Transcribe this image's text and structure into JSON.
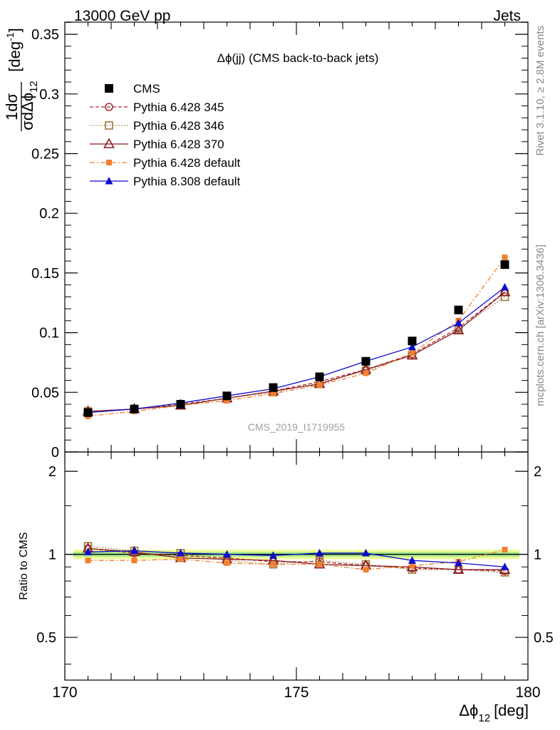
{
  "header": {
    "left": "13000 GeV pp",
    "right": "Jets"
  },
  "side_labels": {
    "rivet": "Rivet 3.1.10, ≥ 2.8M events",
    "mcplots": "mcplots.cern.ch [arXiv:1306.3436]"
  },
  "chart_data": [
    {
      "type": "scatter",
      "panel": "main",
      "title": "Δϕ(jj) (CMS back-to-back jets)",
      "watermark": "CMS_2019_I1719955",
      "ylabel": {
        "frac_num": "1",
        "frac_num_sigma": "dσ",
        "frac_den": "σdΔϕ",
        "frac_den_sub": "12",
        "unit": "[deg",
        "unit_sup": "-1",
        "unit_close": "]"
      },
      "xlim": [
        170,
        180
      ],
      "ylim": [
        0,
        0.36
      ],
      "yticks": [
        0,
        0.05,
        0.1,
        0.15,
        0.2,
        0.25,
        0.3,
        0.35
      ],
      "ytick_labels": [
        "0",
        "0.05",
        "0.1",
        "0.15",
        "0.2",
        "0.25",
        "0.3",
        "0.35"
      ],
      "legend_position": "top-left",
      "x": [
        170.5,
        171.5,
        172.5,
        173.5,
        174.5,
        175.5,
        176.5,
        177.5,
        178.5,
        179.5
      ],
      "series": [
        {
          "name": "CMS",
          "color": "#000000",
          "marker": "square-filled",
          "line": "none",
          "values": [
            0.033,
            0.036,
            0.04,
            0.047,
            0.054,
            0.063,
            0.076,
            0.093,
            0.119,
            0.157
          ]
        },
        {
          "name": "Pythia 6.428 345",
          "color": "#b22c34",
          "marker": "circle-open",
          "line": "dashed",
          "values": [
            0.034,
            0.036,
            0.04,
            0.045,
            0.051,
            0.059,
            0.069,
            0.082,
            0.104,
            0.134
          ]
        },
        {
          "name": "Pythia 6.428 346",
          "color": "#9a7b3a",
          "marker": "square-open",
          "line": "dotted",
          "values": [
            0.034,
            0.036,
            0.04,
            0.045,
            0.05,
            0.058,
            0.068,
            0.081,
            0.103,
            0.13
          ]
        },
        {
          "name": "Pythia 6.428 370",
          "color": "#8a1c26",
          "marker": "triangle-open",
          "line": "solid",
          "values": [
            0.034,
            0.036,
            0.039,
            0.045,
            0.051,
            0.057,
            0.069,
            0.081,
            0.102,
            0.134
          ]
        },
        {
          "name": "Pythia 6.428 default",
          "color": "#f08030",
          "marker": "square-small-filled",
          "line": "dashdot",
          "values": [
            0.03,
            0.034,
            0.039,
            0.043,
            0.049,
            0.056,
            0.066,
            0.083,
            0.11,
            0.163
          ]
        },
        {
          "name": "Pythia 8.308 default",
          "color": "#0b0bd0",
          "marker": "triangle-filled",
          "line": "solid",
          "values": [
            0.033,
            0.036,
            0.041,
            0.047,
            0.053,
            0.063,
            0.076,
            0.088,
            0.108,
            0.138
          ]
        }
      ]
    },
    {
      "type": "scatter",
      "panel": "ratio",
      "ylabel": "Ratio to CMS",
      "xlabel": "Δϕ",
      "xlabel_sub": "12",
      "xlabel_unit": "[deg]",
      "xlim": [
        170,
        180
      ],
      "ylim": [
        0.35,
        2.35
      ],
      "yscale": "log",
      "yticks": [
        0.5,
        1,
        2
      ],
      "ytick_labels": [
        "0.5",
        "1",
        "2"
      ],
      "xticks": [
        170,
        175,
        180
      ],
      "xtick_labels": [
        "170",
        "175",
        "180"
      ],
      "band": {
        "inner": [
          0.98,
          1.02
        ],
        "outer": [
          0.96,
          1.04
        ]
      },
      "x": [
        170.5,
        171.5,
        172.5,
        173.5,
        174.5,
        175.5,
        176.5,
        177.5,
        178.5,
        179.5
      ],
      "series": [
        {
          "name": "Pythia 6.428 345",
          "values": [
            1.05,
            1.01,
            0.99,
            0.97,
            0.94,
            0.94,
            0.91,
            0.89,
            0.88,
            0.87
          ]
        },
        {
          "name": "Pythia 6.428 346",
          "values": [
            1.07,
            1.03,
            1.01,
            0.95,
            0.92,
            0.95,
            0.92,
            0.88,
            0.88,
            0.86
          ]
        },
        {
          "name": "Pythia 6.428 370",
          "values": [
            1.05,
            1.02,
            0.97,
            0.96,
            0.95,
            0.92,
            0.91,
            0.9,
            0.88,
            0.88
          ]
        },
        {
          "name": "Pythia 6.428 default",
          "values": [
            0.95,
            0.95,
            0.96,
            0.93,
            0.92,
            0.92,
            0.88,
            0.91,
            0.94,
            1.04
          ]
        },
        {
          "name": "Pythia 8.308 default",
          "values": [
            1.02,
            1.03,
            1.01,
            1.0,
            0.99,
            1.01,
            1.01,
            0.95,
            0.93,
            0.9
          ]
        }
      ]
    }
  ]
}
